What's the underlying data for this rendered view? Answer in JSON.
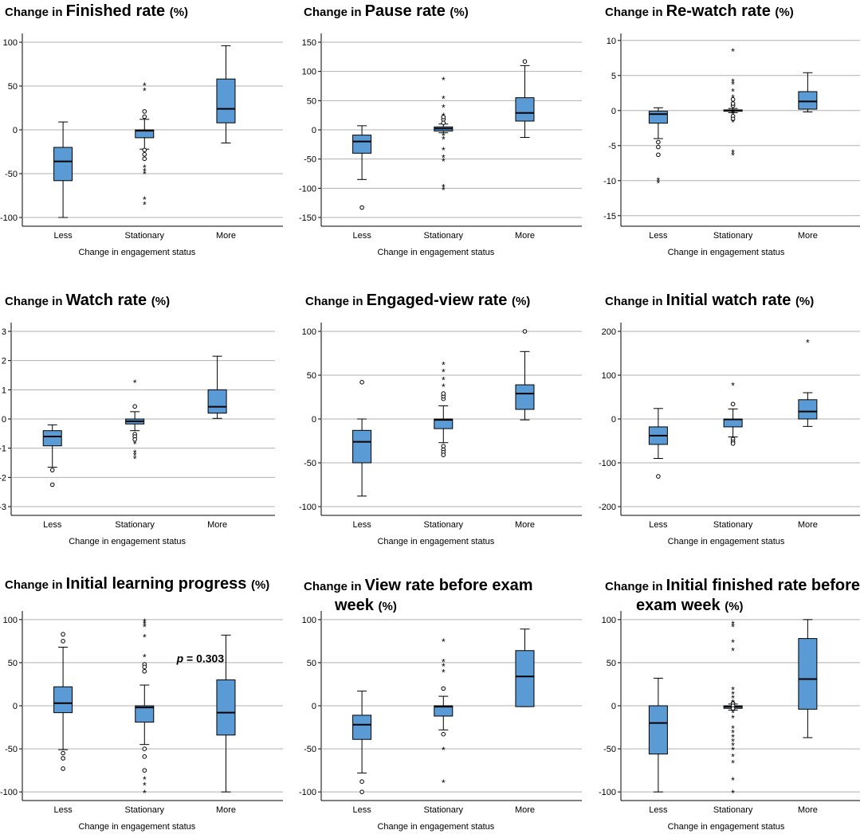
{
  "chart_data": [
    {
      "type": "boxplot",
      "title": {
        "prefix": "Change in",
        "main": "Finished rate",
        "unit": "(%)"
      },
      "xlabel": "Change in engagement status",
      "categories": [
        "Less",
        "Stationary",
        "More"
      ],
      "yticks": [
        -100,
        -50,
        0,
        50,
        100
      ],
      "ylim": [
        -110,
        110
      ],
      "boxes": [
        {
          "whisker_low": -100,
          "q1": -58,
          "median": -36,
          "q3": -20,
          "whisker_high": 9,
          "outliers": [],
          "extremes": []
        },
        {
          "whisker_low": -22,
          "q1": -9,
          "median": -1,
          "q3": 0,
          "whisker_high": 12,
          "outliers": [
            21,
            15,
            -23,
            -28,
            -33
          ],
          "extremes": [
            52,
            46,
            -42,
            -46,
            -49,
            -78,
            -84
          ]
        },
        {
          "whisker_low": -15,
          "q1": 8,
          "median": 24,
          "q3": 58,
          "whisker_high": 96,
          "outliers": [],
          "extremes": []
        }
      ]
    },
    {
      "type": "boxplot",
      "title": {
        "prefix": "Change in",
        "main": "Pause rate",
        "unit": "(%)"
      },
      "xlabel": "Change in engagement status",
      "categories": [
        "Less",
        "Stationary",
        "More"
      ],
      "yticks": [
        -150,
        -100,
        -50,
        0,
        50,
        100,
        150
      ],
      "ylim": [
        -165,
        165
      ],
      "boxes": [
        {
          "whisker_low": -85,
          "q1": -40,
          "median": -20,
          "q3": -9,
          "whisker_high": 7,
          "outliers": [
            -133
          ],
          "extremes": []
        },
        {
          "whisker_low": -5,
          "q1": -2,
          "median": 2,
          "q3": 5,
          "whisker_high": 10,
          "outliers": [
            12,
            18,
            22
          ],
          "extremes": [
            87,
            55,
            40,
            26,
            -8,
            -14,
            -33,
            -46,
            -52,
            -96,
            -101
          ]
        },
        {
          "whisker_low": -13,
          "q1": 15,
          "median": 29,
          "q3": 55,
          "whisker_high": 110,
          "outliers": [
            117
          ],
          "extremes": []
        }
      ]
    },
    {
      "type": "boxplot",
      "title": {
        "prefix": "Change in",
        "main": "Re-watch rate",
        "unit": "(%)"
      },
      "xlabel": "Change in engagement status",
      "categories": [
        "Less",
        "Stationary",
        "More"
      ],
      "yticks": [
        -15,
        -10,
        -5,
        0,
        5,
        10
      ],
      "ylim": [
        -16.5,
        11
      ],
      "boxes": [
        {
          "whisker_low": -4,
          "q1": -1.8,
          "median": -0.5,
          "q3": -0.1,
          "whisker_high": 0.4,
          "outliers": [
            -4.5,
            -5.2,
            -6.3
          ],
          "extremes": [
            -9.8,
            -10.2
          ]
        },
        {
          "whisker_low": -0.3,
          "q1": -0.1,
          "median": 0,
          "q3": 0.1,
          "whisker_high": 0.3,
          "outliers": [
            0.7,
            1.0,
            1.6,
            -0.8,
            -1.2
          ],
          "extremes": [
            8.6,
            4.3,
            3.9,
            2.9,
            2.0,
            -0.3,
            -1.5,
            -5.8,
            -6.2
          ]
        },
        {
          "whisker_low": -0.2,
          "q1": 0.2,
          "median": 1.3,
          "q3": 2.7,
          "whisker_high": 5.4,
          "outliers": [],
          "extremes": []
        }
      ]
    },
    {
      "type": "boxplot",
      "title": {
        "prefix": "Change in",
        "main": "Watch rate",
        "unit": "(%)"
      },
      "xlabel": "Change in engagement status",
      "categories": [
        "Less",
        "Stationary",
        "More"
      ],
      "yticks": [
        -3,
        -2,
        -1,
        0,
        1,
        2,
        3
      ],
      "ylim": [
        -3.3,
        3.3
      ],
      "boxes": [
        {
          "whisker_low": -1.65,
          "q1": -0.92,
          "median": -0.6,
          "q3": -0.4,
          "whisker_high": -0.2,
          "outliers": [
            -1.75,
            -2.25
          ],
          "extremes": []
        },
        {
          "whisker_low": -0.4,
          "q1": -0.17,
          "median": -0.08,
          "q3": 0,
          "whisker_high": 0.25,
          "outliers": [
            0.43,
            -0.52,
            -0.6,
            -0.7
          ],
          "extremes": [
            1.28,
            -0.82,
            -1.12,
            -1.22,
            -1.32
          ]
        },
        {
          "whisker_low": 0.02,
          "q1": 0.2,
          "median": 0.42,
          "q3": 1.0,
          "whisker_high": 2.15,
          "outliers": [],
          "extremes": []
        }
      ]
    },
    {
      "type": "boxplot",
      "title": {
        "prefix": "Change in",
        "main": "Engaged-view rate",
        "unit": "(%)"
      },
      "xlabel": "Change in engagement status",
      "categories": [
        "Less",
        "Stationary",
        "More"
      ],
      "yticks": [
        -100,
        -50,
        0,
        50,
        100
      ],
      "ylim": [
        -110,
        110
      ],
      "boxes": [
        {
          "whisker_low": -88,
          "q1": -50,
          "median": -26,
          "q3": -13,
          "whisker_high": 0,
          "outliers": [
            42
          ],
          "extremes": []
        },
        {
          "whisker_low": -27,
          "q1": -11,
          "median": -1,
          "q3": 0,
          "whisker_high": 15,
          "outliers": [
            23,
            26,
            29,
            -31,
            -35,
            -38,
            -41
          ],
          "extremes": [
            63,
            55,
            46,
            38
          ]
        },
        {
          "whisker_low": -1,
          "q1": 11,
          "median": 29,
          "q3": 39,
          "whisker_high": 77,
          "outliers": [
            100
          ],
          "extremes": []
        }
      ]
    },
    {
      "type": "boxplot",
      "title": {
        "prefix": "Change in",
        "main": "Initial watch rate",
        "unit": "(%)"
      },
      "xlabel": "Change in engagement status",
      "categories": [
        "Less",
        "Stationary",
        "More"
      ],
      "yticks": [
        -200,
        -100,
        0,
        100,
        200
      ],
      "ylim": [
        -220,
        220
      ],
      "boxes": [
        {
          "whisker_low": -90,
          "q1": -58,
          "median": -38,
          "q3": -18,
          "whisker_high": 24,
          "outliers": [
            -131
          ],
          "extremes": []
        },
        {
          "whisker_low": -41,
          "q1": -18,
          "median": -1,
          "q3": 0,
          "whisker_high": 23,
          "outliers": [
            34,
            -46,
            -52,
            -56
          ],
          "extremes": [
            79
          ]
        },
        {
          "whisker_low": -17,
          "q1": 0,
          "median": 17,
          "q3": 44,
          "whisker_high": 60,
          "outliers": [],
          "extremes": [
            177
          ]
        }
      ]
    },
    {
      "type": "boxplot",
      "title": {
        "prefix": "Change in",
        "main": "Initial learning progress",
        "unit": "(%)"
      },
      "xlabel": "Change in engagement status",
      "categories": [
        "Less",
        "Stationary",
        "More"
      ],
      "yticks": [
        -100,
        -50,
        0,
        50,
        100
      ],
      "ylim": [
        -110,
        110
      ],
      "annotation": {
        "p_label": "p",
        "p_text": "= 0.303"
      },
      "boxes": [
        {
          "whisker_low": -51,
          "q1": -8,
          "median": 3,
          "q3": 22,
          "whisker_high": 68,
          "outliers": [
            83,
            75,
            -55,
            -61,
            -73
          ],
          "extremes": []
        },
        {
          "whisker_low": -45,
          "q1": -19,
          "median": -2,
          "q3": 0,
          "whisker_high": 24,
          "outliers": [
            48,
            40,
            45,
            -50,
            -59,
            -75
          ],
          "extremes": [
            99,
            96,
            93,
            81,
            58,
            -84,
            -91,
            -100
          ]
        },
        {
          "whisker_low": -100,
          "q1": -34,
          "median": -8,
          "q3": 30,
          "whisker_high": 82,
          "outliers": [],
          "extremes": []
        }
      ]
    },
    {
      "type": "boxplot",
      "title": {
        "prefix": "Change in",
        "main": "View rate before exam week",
        "unit": "(%)"
      },
      "xlabel": "Change in engagement status",
      "categories": [
        "Less",
        "Stationary",
        "More"
      ],
      "yticks": [
        -100,
        -50,
        0,
        50,
        100
      ],
      "ylim": [
        -110,
        110
      ],
      "boxes": [
        {
          "whisker_low": -78,
          "q1": -39,
          "median": -22,
          "q3": -11,
          "whisker_high": 17,
          "outliers": [
            -88,
            -100
          ],
          "extremes": []
        },
        {
          "whisker_low": -28,
          "q1": -12,
          "median": -1,
          "q3": 0,
          "whisker_high": 11,
          "outliers": [
            20,
            -33
          ],
          "extremes": [
            76,
            52,
            47,
            40,
            -50,
            -88
          ]
        },
        {
          "whisker_low": -1,
          "q1": -1,
          "median": 34,
          "q3": 64,
          "whisker_high": 89,
          "outliers": [],
          "extremes": []
        }
      ]
    },
    {
      "type": "boxplot",
      "title": {
        "prefix": "Change in",
        "main": "Initial finished rate before exam week",
        "unit": "(%)"
      },
      "xlabel": "Change in engagement status",
      "categories": [
        "Less",
        "Stationary",
        "More"
      ],
      "yticks": [
        -100,
        -50,
        0,
        50,
        100
      ],
      "ylim": [
        -110,
        110
      ],
      "boxes": [
        {
          "whisker_low": -100,
          "q1": -56,
          "median": -20,
          "q3": 0,
          "whisker_high": 32,
          "outliers": [],
          "extremes": []
        },
        {
          "whisker_low": -5,
          "q1": -3,
          "median": -1,
          "q3": 0,
          "whisker_high": 2,
          "outliers": [
            3,
            0,
            -3
          ],
          "extremes": [
            96,
            93,
            75,
            65,
            20,
            15,
            10,
            5,
            -7,
            -13,
            -25,
            -30,
            -35,
            -40,
            -45,
            -50,
            -58,
            -65,
            -85,
            -100
          ]
        },
        {
          "whisker_low": -37,
          "q1": -4,
          "median": 31,
          "q3": 78,
          "whisker_high": 100,
          "outliers": [],
          "extremes": []
        }
      ]
    }
  ]
}
